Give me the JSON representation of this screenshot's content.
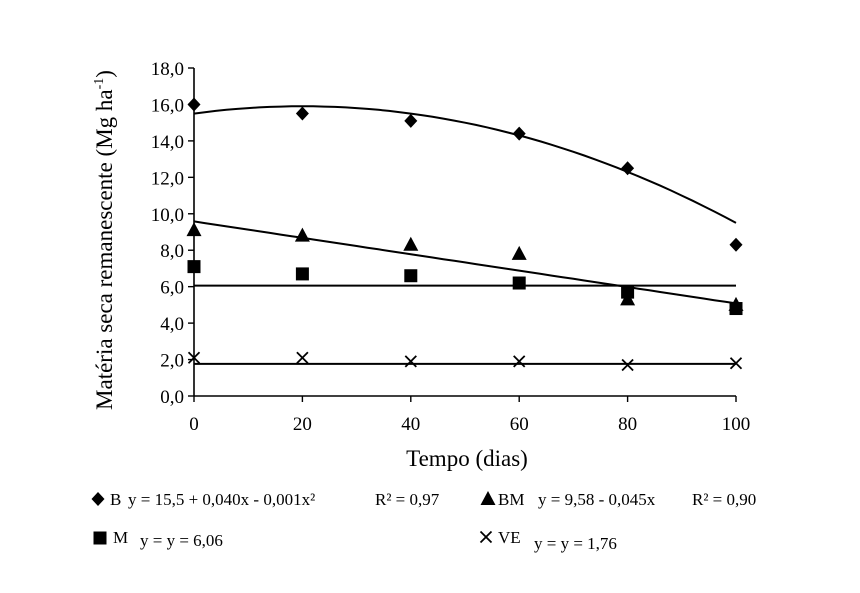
{
  "chart_data": {
    "type": "scatter",
    "title": "",
    "xlabel": "Tempo (dias)",
    "ylabel": "Matéria seca remanescente (Mg ha-1)",
    "ylabel_main": "Matéria seca remanescente (Mg ha",
    "ylabel_sup": "-1",
    "ylabel_close": ")",
    "xlim": [
      0,
      100
    ],
    "ylim": [
      0,
      18
    ],
    "x_ticks": [
      0,
      20,
      40,
      60,
      80,
      100
    ],
    "x_tick_labels": [
      "0",
      "20",
      "40",
      "60",
      "80",
      "100"
    ],
    "y_ticks": [
      0,
      2,
      4,
      6,
      8,
      10,
      12,
      14,
      16,
      18
    ],
    "y_tick_labels": [
      "0,0",
      "2,0",
      "4,0",
      "6,0",
      "8,0",
      "10,0",
      "12,0",
      "14,0",
      "16,0",
      "18,0"
    ],
    "grid": false,
    "legend_position": "bottom",
    "series": [
      {
        "name": "B",
        "marker": "diamond",
        "x": [
          0,
          20,
          40,
          60,
          80,
          100
        ],
        "y": [
          16.0,
          15.5,
          15.1,
          14.4,
          12.5,
          8.3
        ],
        "fit": {
          "type": "quadratic",
          "a": 15.5,
          "b": 0.04,
          "c": -0.001
        },
        "equation": "y = 15,5 + 0,040x - 0,001x²",
        "r2": "R² = 0,97"
      },
      {
        "name": "BM",
        "marker": "triangle",
        "x": [
          0,
          20,
          40,
          60,
          80,
          100
        ],
        "y": [
          9.1,
          8.8,
          8.3,
          7.8,
          5.3,
          5.0
        ],
        "fit": {
          "type": "linear",
          "a": 9.58,
          "b": -0.045
        },
        "equation": "y = 9,58 - 0,045x",
        "r2": "R² = 0,90"
      },
      {
        "name": "M",
        "marker": "square",
        "x": [
          0,
          20,
          40,
          60,
          80,
          100
        ],
        "y": [
          7.1,
          6.7,
          6.6,
          6.2,
          5.7,
          4.8
        ],
        "fit": {
          "type": "constant",
          "a": 6.06
        },
        "equation": "y = y = 6,06",
        "r2": ""
      },
      {
        "name": "VE",
        "marker": "cross",
        "x": [
          0,
          20,
          40,
          60,
          80,
          100
        ],
        "y": [
          2.1,
          2.1,
          1.9,
          1.9,
          1.7,
          1.8
        ],
        "fit": {
          "type": "constant",
          "a": 1.76
        },
        "equation": "y = y = 1,76",
        "r2": ""
      }
    ]
  }
}
